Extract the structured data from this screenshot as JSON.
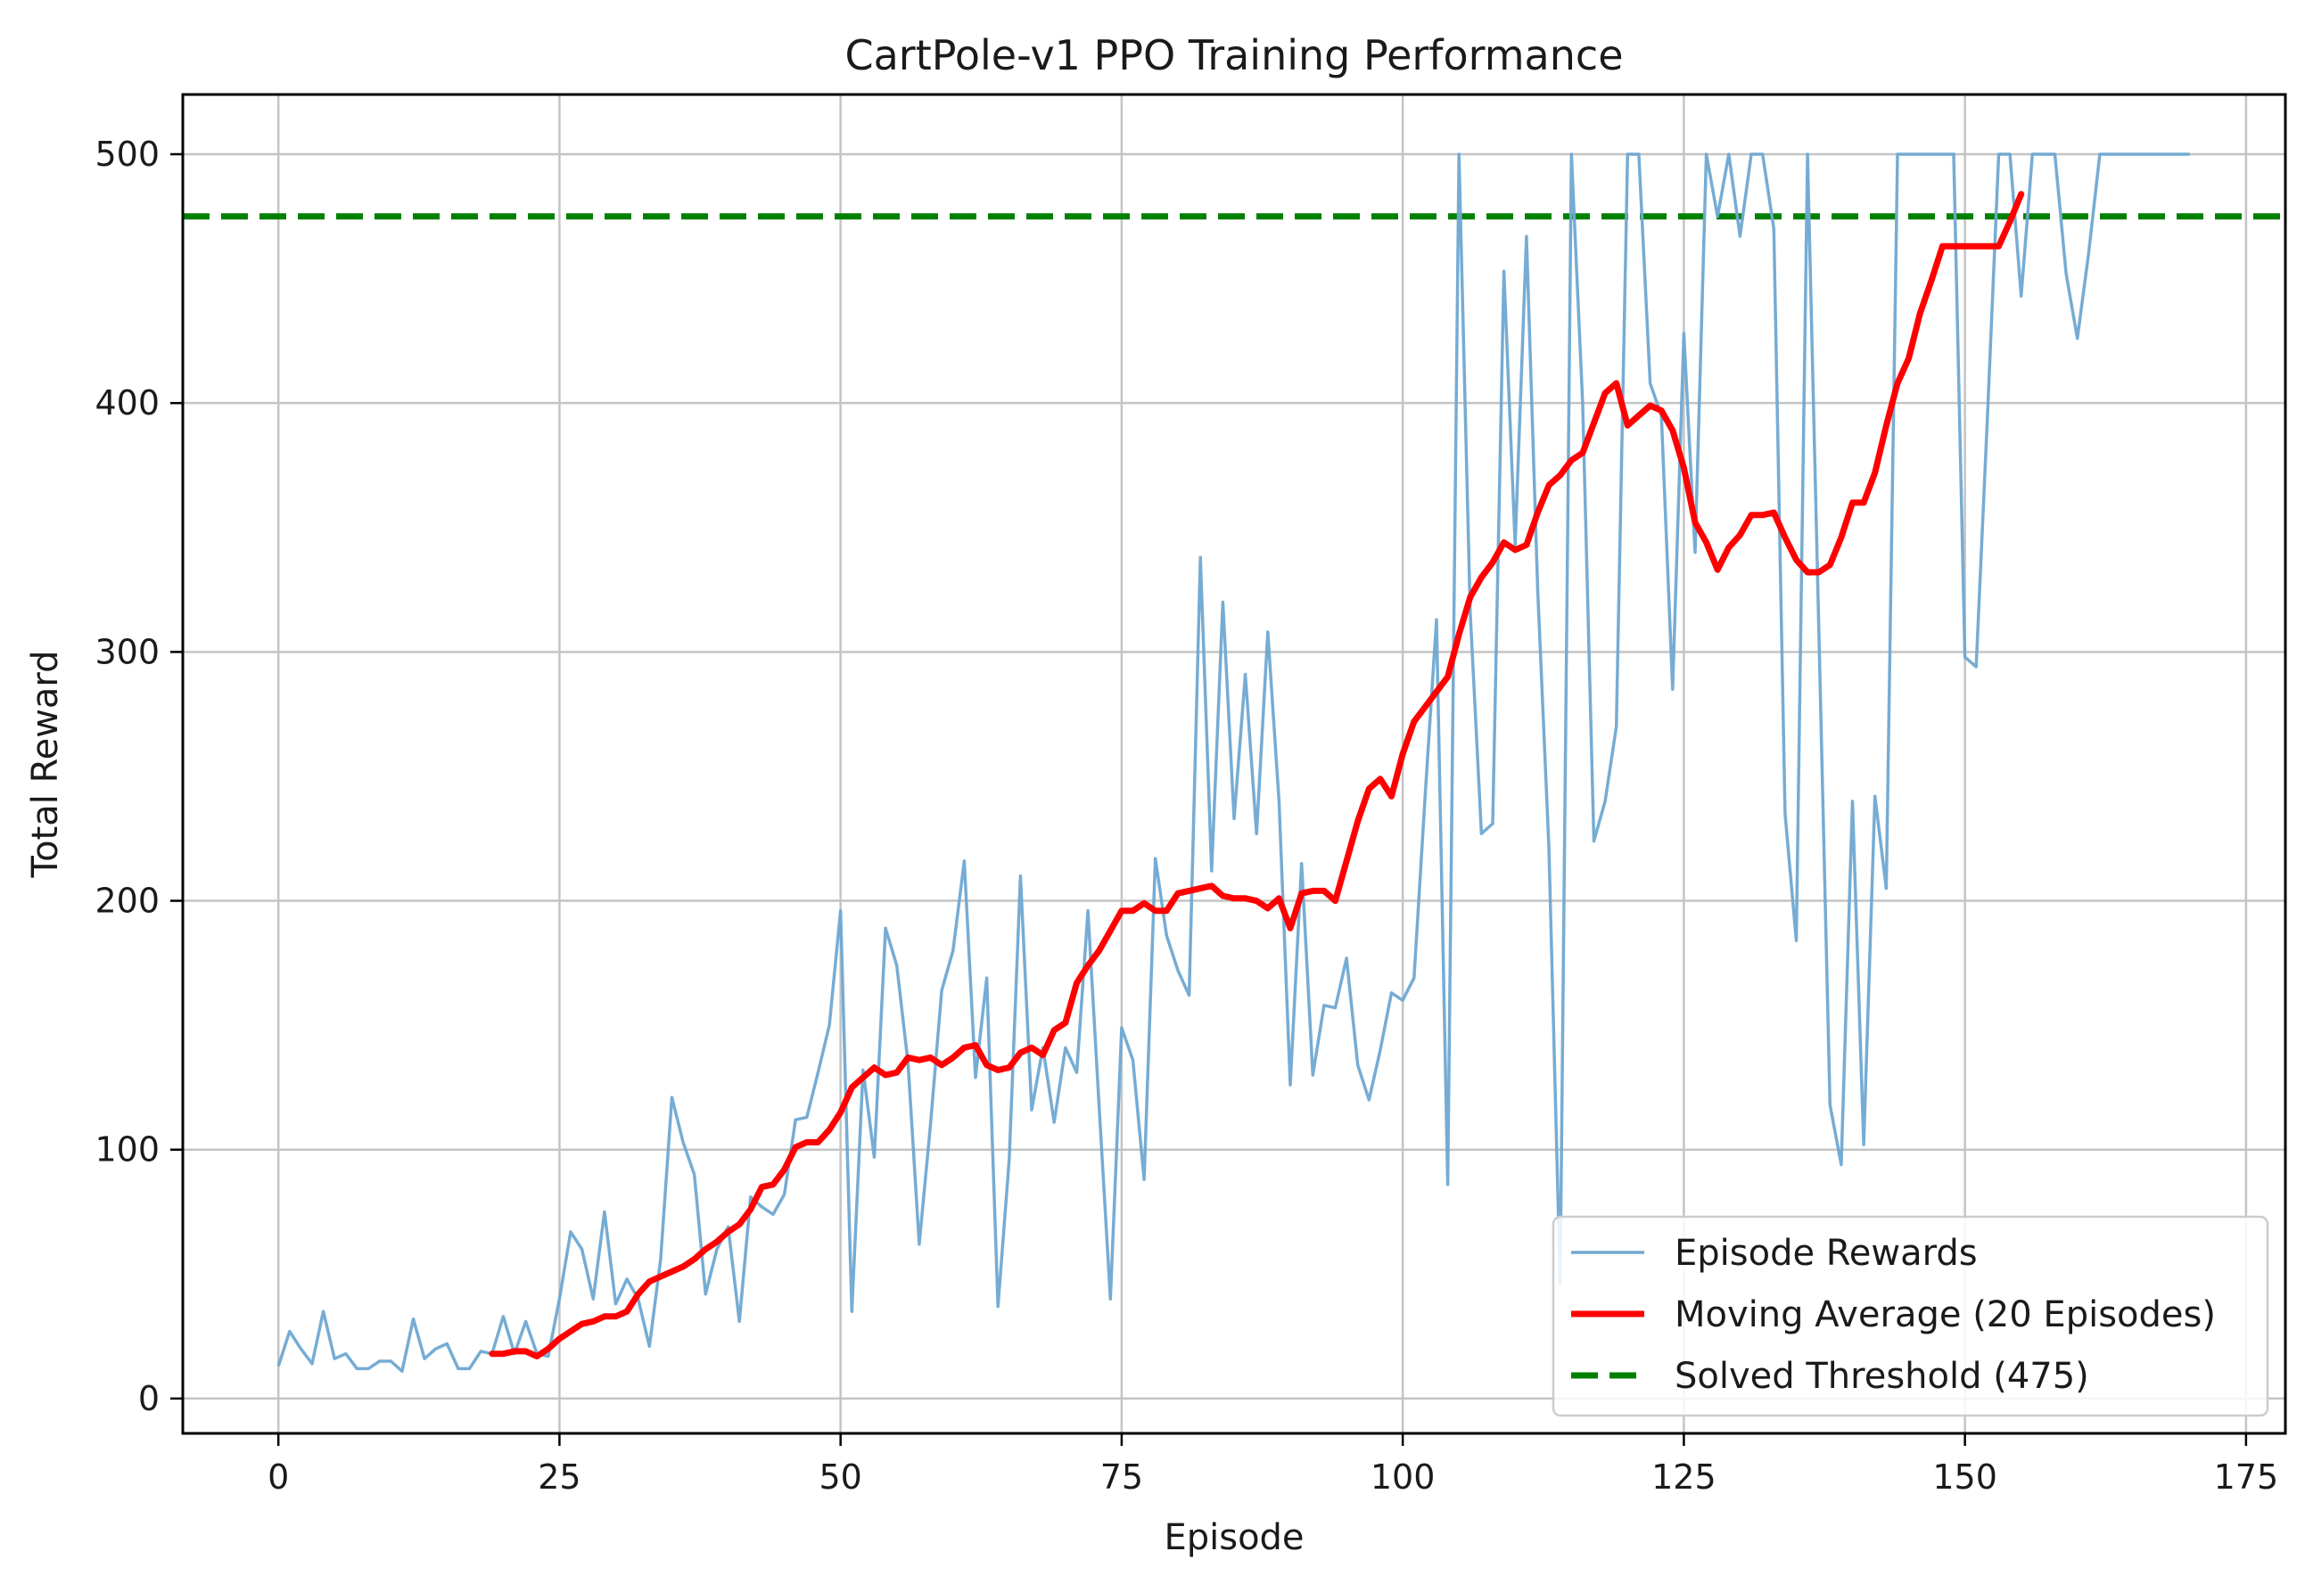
{
  "chart_data": {
    "type": "line",
    "title": "CartPole-v1 PPO Training Performance",
    "xlabel": "Episode",
    "ylabel": "Total Reward",
    "xlim": [
      -8.5,
      178.5
    ],
    "ylim": [
      -14,
      524
    ],
    "xticks": [
      0,
      25,
      50,
      75,
      100,
      125,
      150,
      175
    ],
    "yticks": [
      0,
      100,
      200,
      300,
      400,
      500
    ],
    "grid": true,
    "legend_position": "lower-right",
    "colors": {
      "episode": "#6fa8d2",
      "moving": "#ff0000",
      "threshold": "#008000",
      "axis": "#000000",
      "grid": "#c4c4c4"
    },
    "series": [
      {
        "name": "Episode Rewards",
        "style": "thin-line",
        "x_start": 0,
        "values": [
          13,
          27,
          20,
          14,
          35,
          16,
          18,
          12,
          12,
          15,
          15,
          11,
          32,
          16,
          20,
          22,
          12,
          12,
          19,
          18,
          33,
          18,
          31,
          18,
          17,
          40,
          67,
          60,
          40,
          75,
          38,
          48,
          40,
          21,
          56,
          121,
          103,
          90,
          42,
          60,
          69,
          31,
          81,
          77,
          74,
          82,
          112,
          113,
          131,
          150,
          196,
          35,
          132,
          97,
          189,
          174,
          135,
          62,
          110,
          164,
          180,
          216,
          129,
          169,
          37,
          96,
          210,
          116,
          141,
          111,
          141,
          131,
          196,
          117,
          40,
          149,
          136,
          88,
          217,
          186,
          172,
          162,
          338,
          212,
          320,
          233,
          291,
          227,
          308,
          240,
          126,
          215,
          130,
          158,
          157,
          177,
          134,
          120,
          140,
          163,
          160,
          169,
          243,
          313,
          86,
          500,
          316,
          227,
          231,
          453,
          343,
          467,
          325,
          221,
          46,
          500,
          400,
          224,
          240,
          270,
          500,
          500,
          408,
          395,
          285,
          428,
          340,
          500,
          475,
          500,
          467,
          500,
          500,
          470,
          235,
          184,
          500,
          310,
          118,
          94,
          240,
          102,
          242,
          205,
          500,
          500,
          500,
          500,
          500,
          500,
          298,
          294,
          394,
          500,
          500,
          443,
          500,
          500,
          500,
          452,
          426,
          460,
          500,
          500,
          500,
          500,
          500,
          500,
          500,
          500,
          500
        ]
      },
      {
        "name": "Moving Average (20 Episodes)",
        "style": "thick-line",
        "x_start": 19,
        "values": [
          18,
          18,
          19,
          19,
          17,
          20,
          24,
          27,
          30,
          31,
          33,
          33,
          35,
          42,
          47,
          49,
          51,
          53,
          56,
          60,
          63,
          67,
          70,
          76,
          85,
          86,
          92,
          101,
          103,
          103,
          108,
          115,
          125,
          129,
          133,
          130,
          131,
          137,
          136,
          137,
          134,
          137,
          141,
          142,
          134,
          132,
          133,
          139,
          141,
          138,
          148,
          151,
          167,
          174,
          180,
          188,
          196,
          196,
          199,
          196,
          196,
          203,
          204,
          205,
          206,
          202,
          201,
          201,
          200,
          197,
          201,
          189,
          203,
          204,
          204,
          200,
          216,
          232,
          245,
          249,
          242,
          259,
          272,
          278,
          284,
          290,
          307,
          322,
          330,
          336,
          344,
          341,
          343,
          356,
          367,
          371,
          377,
          380,
          392,
          404,
          408,
          391,
          395,
          399,
          397,
          389,
          374,
          352,
          344,
          333,
          342,
          347,
          355,
          355,
          356,
          346,
          337,
          332,
          332,
          335,
          346,
          360,
          360,
          372,
          391,
          408,
          418,
          436,
          449,
          463,
          463,
          463,
          463,
          463,
          463,
          473,
          484
        ]
      },
      {
        "name": "Solved Threshold (475)",
        "style": "dashed",
        "value": 475
      }
    ]
  }
}
